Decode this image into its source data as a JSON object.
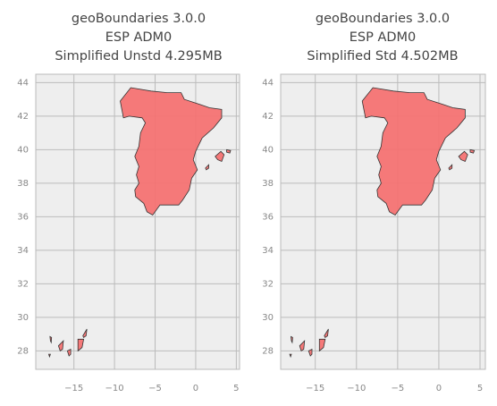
{
  "chart_data": [
    {
      "type": "map",
      "title": "geoBoundaries 3.0.0\nESP ADM0\nSimplified Unstd 4.295MB",
      "xlim": [
        -19.7,
        5.4
      ],
      "ylim": [
        26.9,
        44.5
      ],
      "xticks": [
        {
          "value": -15,
          "label": "−15"
        },
        {
          "value": -10,
          "label": "−10"
        },
        {
          "value": -5,
          "label": "−5"
        },
        0,
        5
      ],
      "yticks": [
        28,
        30,
        32,
        34,
        36,
        38,
        40,
        42,
        44
      ],
      "grid": true,
      "color": "#f47272",
      "edgecolor": "#333333",
      "shapes": [
        {
          "lon": [
            -9.3,
            -8.0,
            -5.5,
            -3.5,
            -1.8,
            -1.4,
            0.5,
            1.7,
            3.2,
            3.2,
            2.2,
            0.8,
            0.0,
            -0.3,
            0.2,
            -0.5,
            -0.8,
            -1.6,
            -2.1,
            -3.0,
            -4.4,
            -5.3,
            -6.0,
            -6.4,
            -7.4,
            -7.5,
            -7.0,
            -7.3,
            -7.0,
            -7.5,
            -7.0,
            -6.8,
            -6.2,
            -6.6,
            -8.2,
            -8.9
          ],
          "lat": [
            42.9,
            43.7,
            43.5,
            43.4,
            43.4,
            43.0,
            42.7,
            42.5,
            42.4,
            41.9,
            41.3,
            40.7,
            39.9,
            39.4,
            38.8,
            38.3,
            37.6,
            37.0,
            36.7,
            36.7,
            36.7,
            36.1,
            36.3,
            36.8,
            37.2,
            37.6,
            38.0,
            38.5,
            39.0,
            39.6,
            40.2,
            41.0,
            41.6,
            41.9,
            42.0,
            41.9
          ]
        },
        {
          "lon": [
            2.4,
            3.1,
            3.5,
            3.2,
            2.7
          ],
          "lat": [
            39.6,
            39.9,
            39.7,
            39.3,
            39.4
          ]
        },
        {
          "lon": [
            3.8,
            4.3,
            4.2,
            3.8
          ],
          "lat": [
            40.0,
            39.95,
            39.8,
            39.85
          ]
        },
        {
          "lon": [
            1.2,
            1.6,
            1.6,
            1.3
          ],
          "lat": [
            38.9,
            39.1,
            38.9,
            38.8
          ]
        },
        {
          "lon": [
            -16.9,
            -16.3,
            -16.4,
            -16.7
          ],
          "lat": [
            28.3,
            28.6,
            28.1,
            28.0
          ]
        },
        {
          "lon": [
            -15.8,
            -15.4,
            -15.4,
            -15.6
          ],
          "lat": [
            28.0,
            28.1,
            27.8,
            27.7
          ]
        },
        {
          "lon": [
            -14.5,
            -13.8,
            -14.0,
            -14.5
          ],
          "lat": [
            28.7,
            28.7,
            28.2,
            28.0
          ]
        },
        {
          "lon": [
            -13.9,
            -13.4,
            -13.5,
            -13.8
          ],
          "lat": [
            28.9,
            29.3,
            28.9,
            28.8
          ]
        },
        {
          "lon": [
            -17.95,
            -17.75,
            -17.8,
            -17.9
          ],
          "lat": [
            28.85,
            28.8,
            28.5,
            28.6
          ]
        },
        {
          "lon": [
            -18.1,
            -17.9,
            -18.0
          ],
          "lat": [
            27.8,
            27.8,
            27.65
          ]
        }
      ]
    },
    {
      "type": "map",
      "title": "geoBoundaries 3.0.0\nESP ADM0\nSimplified Std 4.502MB",
      "xlim": [
        -19.2,
        5.65
      ],
      "ylim": [
        26.9,
        44.5
      ],
      "xticks": [
        {
          "value": -15,
          "label": "−15"
        },
        {
          "value": -10,
          "label": "−10"
        },
        {
          "value": -5,
          "label": "−5"
        },
        0,
        5
      ],
      "yticks": [
        28,
        30,
        32,
        34,
        36,
        38,
        40,
        42,
        44
      ],
      "grid": true,
      "color": "#f47272",
      "edgecolor": "#333333",
      "shapes": [
        {
          "lon": [
            -9.3,
            -8.0,
            -5.5,
            -3.5,
            -1.8,
            -1.4,
            0.5,
            1.7,
            3.2,
            3.2,
            2.2,
            0.8,
            0.0,
            -0.3,
            0.2,
            -0.5,
            -0.8,
            -1.6,
            -2.1,
            -3.0,
            -4.4,
            -5.3,
            -6.0,
            -6.4,
            -7.4,
            -7.5,
            -7.0,
            -7.3,
            -7.0,
            -7.5,
            -7.0,
            -6.8,
            -6.2,
            -6.6,
            -8.2,
            -8.9
          ],
          "lat": [
            42.9,
            43.7,
            43.5,
            43.4,
            43.4,
            43.0,
            42.7,
            42.5,
            42.4,
            41.9,
            41.3,
            40.7,
            39.9,
            39.4,
            38.8,
            38.3,
            37.6,
            37.0,
            36.7,
            36.7,
            36.7,
            36.1,
            36.3,
            36.8,
            37.2,
            37.6,
            38.0,
            38.5,
            39.0,
            39.6,
            40.2,
            41.0,
            41.6,
            41.9,
            42.0,
            41.9
          ]
        },
        {
          "lon": [
            2.4,
            3.1,
            3.5,
            3.2,
            2.7
          ],
          "lat": [
            39.6,
            39.9,
            39.7,
            39.3,
            39.4
          ]
        },
        {
          "lon": [
            3.8,
            4.3,
            4.2,
            3.8
          ],
          "lat": [
            40.0,
            39.95,
            39.8,
            39.85
          ]
        },
        {
          "lon": [
            1.2,
            1.6,
            1.6,
            1.3
          ],
          "lat": [
            38.9,
            39.1,
            38.9,
            38.8
          ]
        },
        {
          "lon": [
            -16.9,
            -16.3,
            -16.4,
            -16.7
          ],
          "lat": [
            28.3,
            28.6,
            28.1,
            28.0
          ]
        },
        {
          "lon": [
            -15.8,
            -15.4,
            -15.4,
            -15.6
          ],
          "lat": [
            28.0,
            28.1,
            27.8,
            27.7
          ]
        },
        {
          "lon": [
            -14.5,
            -13.8,
            -14.0,
            -14.5
          ],
          "lat": [
            28.7,
            28.7,
            28.2,
            28.0
          ]
        },
        {
          "lon": [
            -13.9,
            -13.4,
            -13.5,
            -13.8
          ],
          "lat": [
            28.9,
            29.3,
            28.9,
            28.8
          ]
        },
        {
          "lon": [
            -17.95,
            -17.75,
            -17.8,
            -17.9
          ],
          "lat": [
            28.85,
            28.8,
            28.5,
            28.6
          ]
        },
        {
          "lon": [
            -18.1,
            -17.9,
            -18.0
          ],
          "lat": [
            27.8,
            27.8,
            27.65
          ]
        }
      ]
    }
  ]
}
